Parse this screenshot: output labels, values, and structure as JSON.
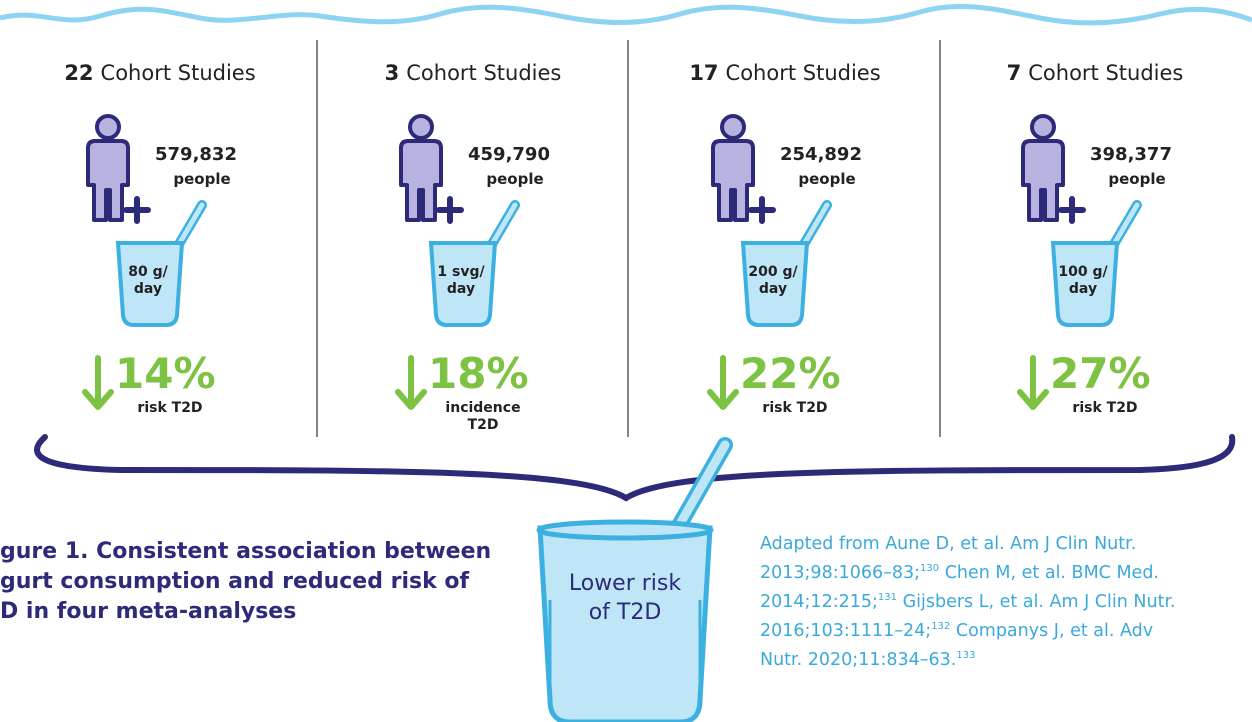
{
  "columns": [
    {
      "count": "22",
      "label": "Cohort Studies",
      "people": "579,832",
      "people_unit": "people",
      "dose": [
        "80 g/",
        "day"
      ],
      "percent": "14%",
      "outcome": [
        "risk T2D"
      ]
    },
    {
      "count": "3",
      "label": "Cohort Studies",
      "people": "459,790",
      "people_unit": "people",
      "dose": [
        "1 svg/",
        "day"
      ],
      "percent": "18%",
      "outcome": [
        "incidence",
        "T2D"
      ]
    },
    {
      "count": "17",
      "label": "Cohort Studies",
      "people": "254,892",
      "people_unit": "people",
      "dose": [
        "200 g/",
        "day"
      ],
      "percent": "22%",
      "outcome": [
        "risk T2D"
      ]
    },
    {
      "count": "7",
      "label": "Cohort Studies",
      "people": "398,377",
      "people_unit": "people",
      "dose": [
        "100 g/",
        "day"
      ],
      "percent": "27%",
      "outcome": [
        "risk T2D"
      ]
    }
  ],
  "center_label": [
    "Lower risk",
    "of T2D"
  ],
  "caption": [
    "gure 1. Consistent association between",
    "gurt consumption and reduced risk of",
    "D in four meta-analyses"
  ],
  "references": [
    {
      "text": "Adapted from Aune D, et al. Am J Clin Nutr. 2013;98:1066–83;",
      "sup": "130"
    },
    {
      "text": " Chen M, et al. BMC Med. 2014;12:215;",
      "sup": "131"
    },
    {
      "text": " Gijsbers L, et al. Am J Clin Nutr. 2016;103:1111–24;",
      "sup": "132"
    },
    {
      "text": " Companys J, et al. Adv Nutr. 2020;11:834–63.",
      "sup": "133"
    }
  ]
}
